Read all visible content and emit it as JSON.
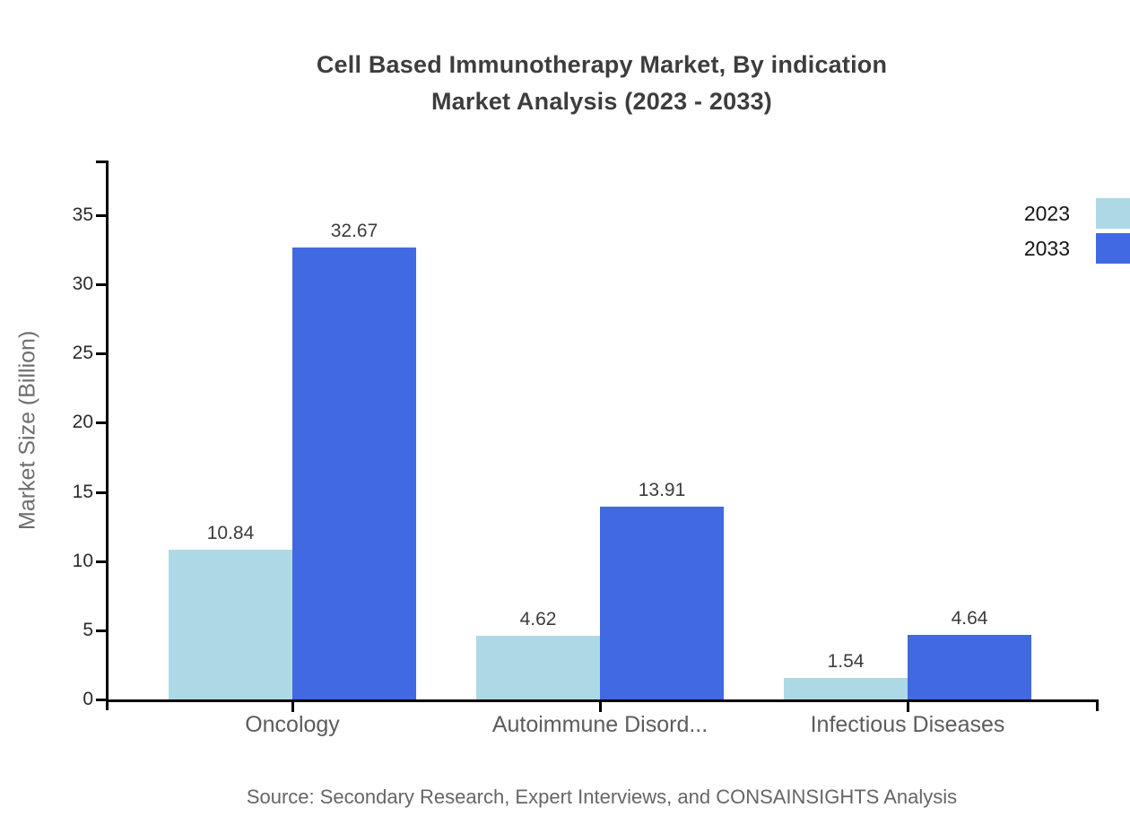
{
  "title": {
    "line1": "Cell Based Immunotherapy Market, By indication",
    "line2": "Market Analysis (2023 - 2033)"
  },
  "ylabel": "Market Size (Billion)",
  "source": "Source: Secondary Research, Expert Interviews, and CONSAINSIGHTS Analysis",
  "colors": {
    "series_2023": "#ADD8E6",
    "series_2033": "#4169E1",
    "axis": "#000000",
    "title_text": "#3d3d3d",
    "label_text": "#3c3c3c",
    "muted_text": "#6e6e6e"
  },
  "chart_data": {
    "type": "bar",
    "title": "Cell Based Immunotherapy Market, By indication Market Analysis (2023 - 2033)",
    "categories": [
      "Oncology",
      "Autoimmune Disord...",
      "Infectious Diseases"
    ],
    "series": [
      {
        "name": "2023",
        "color": "#ADD8E6",
        "values": [
          10.84,
          4.62,
          1.54
        ]
      },
      {
        "name": "2033",
        "color": "#4169E1",
        "values": [
          32.67,
          13.91,
          4.64
        ]
      }
    ],
    "xlabel": "",
    "ylabel": "Market Size (Billion)",
    "yticks": [
      0,
      5,
      10,
      15,
      20,
      25,
      30,
      35
    ],
    "ylim": [
      0,
      39
    ],
    "grid": false,
    "legend_position": "top-right",
    "value_labels": true,
    "value_label_format": "2-decimals"
  }
}
